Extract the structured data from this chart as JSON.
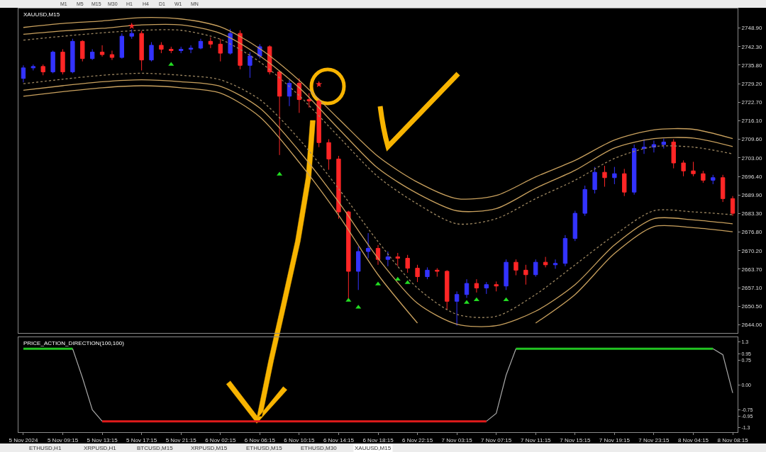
{
  "chart_data": [
    {
      "type": "candlestick",
      "title": "XAUUSD,M15",
      "categories": [
        "5 Nov 2024",
        null,
        null,
        null,
        "5 Nov 09:15",
        null,
        null,
        null,
        "5 Nov 13:15",
        null,
        null,
        null,
        "5 Nov 17:15",
        null,
        null,
        null,
        "5 Nov 21:15",
        null,
        null,
        null,
        "6 Nov 02:15",
        null,
        null,
        null,
        "6 Nov 06:15",
        null,
        null,
        null,
        "6 Nov 10:15",
        null,
        null,
        null,
        "6 Nov 14:15",
        null,
        null,
        null,
        "6 Nov 18:15",
        null,
        null,
        null,
        "6 Nov 22:15",
        null,
        null,
        null,
        "7 Nov 03:15",
        null,
        null,
        null,
        "7 Nov 07:15",
        null,
        null,
        null,
        "7 Nov 11:15",
        null,
        null,
        null,
        "7 Nov 15:15",
        null,
        null,
        null,
        "7 Nov 19:15",
        null,
        null,
        null,
        "7 Nov 23:15",
        null,
        null,
        null,
        "8 Nov 04:15",
        null,
        null,
        null,
        "8 Nov 08:15"
      ],
      "ohlc": [
        [
          2731.1,
          2735.7,
          2729.7,
          2734.8
        ],
        [
          2734.8,
          2736.0,
          2733.9,
          2735.3
        ],
        [
          2735.3,
          2736.0,
          2732.2,
          2733.4
        ],
        [
          2733.4,
          2740.9,
          2732.9,
          2740.4
        ],
        [
          2740.4,
          2741.4,
          2732.5,
          2733.4
        ],
        [
          2733.4,
          2745.1,
          2732.9,
          2744.2
        ],
        [
          2744.2,
          2744.6,
          2737.1,
          2738.1
        ],
        [
          2738.1,
          2741.4,
          2737.6,
          2740.4
        ],
        [
          2740.4,
          2742.8,
          2738.8,
          2739.5
        ],
        [
          2739.5,
          2740.9,
          2737.6,
          2738.5
        ],
        [
          2738.5,
          2747.0,
          2738.1,
          2746.0
        ],
        [
          2746.0,
          2748.4,
          2745.1,
          2747.0
        ],
        [
          2747.0,
          2747.9,
          2733.9,
          2737.6
        ],
        [
          2737.6,
          2743.9,
          2737.1,
          2742.8
        ],
        [
          2742.8,
          2743.9,
          2740.0,
          2741.4
        ],
        [
          2741.4,
          2742.3,
          2740.0,
          2740.9
        ],
        [
          2740.9,
          2742.3,
          2740.0,
          2741.4
        ],
        [
          2741.4,
          2742.8,
          2740.0,
          2741.8
        ],
        [
          2741.8,
          2745.1,
          2741.4,
          2744.2
        ],
        [
          2744.2,
          2745.6,
          2741.8,
          2743.2
        ],
        [
          2743.2,
          2745.1,
          2737.1,
          2740.0
        ],
        [
          2740.0,
          2748.6,
          2739.5,
          2747.0
        ],
        [
          2747.0,
          2748.1,
          2734.3,
          2735.7
        ],
        [
          2735.7,
          2740.4,
          2731.3,
          2739.0
        ],
        [
          2739.0,
          2743.2,
          2738.1,
          2742.3
        ],
        [
          2742.3,
          2742.8,
          2732.5,
          2733.4
        ],
        [
          2733.4,
          2733.9,
          2704.0,
          2724.8
        ],
        [
          2724.8,
          2730.6,
          2721.3,
          2729.4
        ],
        [
          2729.4,
          2731.1,
          2718.9,
          2723.6
        ],
        [
          2723.6,
          2725.9,
          2720.8,
          2723.1
        ],
        [
          2723.1,
          2724.1,
          2706.8,
          2708.4
        ],
        [
          2708.4,
          2709.6,
          2698.8,
          2702.6
        ],
        [
          2702.6,
          2703.7,
          2681.5,
          2683.9
        ],
        [
          2683.9,
          2684.3,
          2653.0,
          2662.9
        ],
        [
          2662.9,
          2671.7,
          2656.3,
          2669.9
        ],
        [
          2669.9,
          2676.4,
          2667.5,
          2671.0
        ],
        [
          2671.0,
          2672.2,
          2665.2,
          2667.1
        ],
        [
          2667.1,
          2669.9,
          2664.7,
          2668.0
        ],
        [
          2668.0,
          2669.4,
          2664.7,
          2667.5
        ],
        [
          2667.5,
          2668.7,
          2662.4,
          2664.0
        ],
        [
          2664.0,
          2665.2,
          2659.1,
          2661.0
        ],
        [
          2661.0,
          2664.3,
          2660.1,
          2663.3
        ],
        [
          2663.3,
          2664.0,
          2661.0,
          2662.9
        ],
        [
          2662.9,
          2663.3,
          2649.3,
          2652.3
        ],
        [
          2652.3,
          2655.8,
          2643.7,
          2654.7
        ],
        [
          2654.7,
          2660.1,
          2653.5,
          2658.6
        ],
        [
          2658.6,
          2660.1,
          2655.4,
          2657.0
        ],
        [
          2657.0,
          2659.1,
          2654.9,
          2658.2
        ],
        [
          2658.2,
          2659.3,
          2655.8,
          2657.7
        ],
        [
          2657.7,
          2667.1,
          2656.3,
          2666.1
        ],
        [
          2666.1,
          2667.1,
          2661.5,
          2663.3
        ],
        [
          2663.3,
          2665.2,
          2658.2,
          2661.7
        ],
        [
          2661.7,
          2667.1,
          2661.0,
          2666.1
        ],
        [
          2666.1,
          2668.0,
          2664.3,
          2665.2
        ],
        [
          2665.2,
          2667.1,
          2663.8,
          2665.7
        ],
        [
          2665.7,
          2675.7,
          2664.7,
          2674.5
        ],
        [
          2674.5,
          2684.3,
          2673.6,
          2683.4
        ],
        [
          2683.4,
          2693.2,
          2682.5,
          2691.8
        ],
        [
          2691.8,
          2699.8,
          2690.4,
          2697.9
        ],
        [
          2697.9,
          2700.2,
          2692.8,
          2696.0
        ],
        [
          2696.0,
          2699.8,
          2693.7,
          2697.4
        ],
        [
          2697.4,
          2699.1,
          2689.5,
          2690.9
        ],
        [
          2690.9,
          2707.7,
          2690.0,
          2706.3
        ],
        [
          2706.3,
          2709.6,
          2704.4,
          2706.8
        ],
        [
          2706.8,
          2709.1,
          2704.9,
          2707.7
        ],
        [
          2707.7,
          2709.8,
          2706.3,
          2708.6
        ],
        [
          2708.6,
          2709.6,
          2699.3,
          2701.2
        ],
        [
          2701.2,
          2702.1,
          2696.5,
          2698.4
        ],
        [
          2698.4,
          2701.6,
          2696.5,
          2697.4
        ],
        [
          2697.4,
          2698.4,
          2694.2,
          2695.1
        ],
        [
          2695.1,
          2697.0,
          2693.7,
          2696.0
        ],
        [
          2696.0,
          2697.0,
          2687.4,
          2688.6
        ],
        [
          2688.6,
          2689.5,
          2682.5,
          2683.4
        ]
      ],
      "colors": [
        "#3333ff",
        "#3333ff",
        "#ff2626",
        "#3333ff",
        "#ff2626",
        "#3333ff",
        "#ff2626",
        "#3333ff",
        "#ff2626",
        "#ff2626",
        "#3333ff",
        "#3333ff",
        "#ff2626",
        "#3333ff",
        "#ff2626",
        "#ff2626",
        "#3333ff",
        "#3333ff",
        "#3333ff",
        "#ff2626",
        "#ff2626",
        "#3333ff",
        "#ff2626",
        "#3333ff",
        "#3333ff",
        "#ff2626",
        "#ff2626",
        "#3333ff",
        "#ff2626",
        "#ff2626",
        "#ff2626",
        "#ff2626",
        "#ff2626",
        "#ff2626",
        "#3333ff",
        "#3333ff",
        "#ff2626",
        "#3333ff",
        "#ff2626",
        "#ff2626",
        "#ff2626",
        "#3333ff",
        "#ff2626",
        "#ff2626",
        "#3333ff",
        "#3333ff",
        "#ff2626",
        "#3333ff",
        "#ff2626",
        "#3333ff",
        "#ff2626",
        "#ff2626",
        "#3333ff",
        "#ff2626",
        "#3333ff",
        "#3333ff",
        "#3333ff",
        "#3333ff",
        "#3333ff",
        "#ff2626",
        "#3333ff",
        "#ff2626",
        "#3333ff",
        "#3333ff",
        "#3333ff",
        "#3333ff",
        "#ff2626",
        "#ff2626",
        "#ff2626",
        "#ff2626",
        "#3333ff",
        "#ff2626",
        "#ff2626"
      ],
      "series": [
        {
          "type": "line",
          "color": "#c9a15e",
          "line_style": "solid",
          "x": [
            "5 Nov 2024",
            "5 Nov 09:15",
            "5 Nov 13:15",
            "5 Nov 17:15",
            "5 Nov 21:15",
            "6 Nov 02:15",
            "6 Nov 06:15",
            "6 Nov 10:15",
            "6 Nov 14:15",
            "6 Nov 18:15",
            "6 Nov 22:15",
            "7 Nov 03:15",
            "7 Nov 07:15",
            "7 Nov 11:15",
            "7 Nov 15:15",
            "7 Nov 19:15",
            "7 Nov 23:15",
            "8 Nov 04:15",
            "8 Nov 08:15"
          ],
          "values": [
            2749.1,
            2750.5,
            2751.4,
            2752.6,
            2752.1,
            2749.3,
            2741.6,
            2730.4,
            2716.8,
            2703.5,
            2694.4,
            2688.6,
            2689.7,
            2696.3,
            2702.1,
            2709.3,
            2712.9,
            2713.1,
            2709.8
          ]
        },
        {
          "type": "line",
          "color": "#c9a15e",
          "line_style": "solid",
          "x": [
            "5 Nov 2024",
            "5 Nov 09:15",
            "5 Nov 13:15",
            "5 Nov 17:15",
            "5 Nov 21:15",
            "6 Nov 02:15",
            "6 Nov 06:15",
            "6 Nov 10:15",
            "6 Nov 14:15",
            "6 Nov 18:15",
            "6 Nov 22:15",
            "7 Nov 03:15",
            "7 Nov 07:15",
            "7 Nov 11:15",
            "7 Nov 15:15",
            "7 Nov 19:15",
            "7 Nov 23:15",
            "8 Nov 04:15",
            "8 Nov 08:15"
          ],
          "values": [
            2746.7,
            2747.9,
            2748.8,
            2750.0,
            2750.0,
            2747.0,
            2739.0,
            2727.8,
            2713.3,
            2699.3,
            2690.4,
            2684.3,
            2685.1,
            2692.3,
            2698.6,
            2706.5,
            2709.8,
            2710.0,
            2707.0
          ]
        },
        {
          "type": "line",
          "color": "#9c8660",
          "line_style": "dotted",
          "x": [
            "5 Nov 2024",
            "5 Nov 09:15",
            "5 Nov 13:15",
            "5 Nov 17:15",
            "5 Nov 21:15",
            "6 Nov 02:15",
            "6 Nov 06:15",
            "6 Nov 10:15",
            "6 Nov 14:15",
            "6 Nov 18:15",
            "6 Nov 22:15",
            "7 Nov 03:15",
            "7 Nov 07:15",
            "7 Nov 11:15",
            "7 Nov 15:15",
            "7 Nov 19:15",
            "7 Nov 23:15",
            "8 Nov 04:15",
            "8 Nov 08:15"
          ],
          "values": [
            2744.6,
            2746.0,
            2747.2,
            2748.1,
            2748.1,
            2744.9,
            2736.9,
            2725.0,
            2710.5,
            2696.3,
            2686.7,
            2679.7,
            2681.5,
            2688.6,
            2695.1,
            2702.8,
            2707.0,
            2706.8,
            2704.4
          ]
        },
        {
          "type": "line",
          "color": "#9c8660",
          "line_style": "dotted",
          "x": [
            "5 Nov 2024",
            "5 Nov 09:15",
            "5 Nov 13:15",
            "5 Nov 17:15",
            "5 Nov 21:15",
            "6 Nov 02:15",
            "6 Nov 06:15",
            "6 Nov 10:15",
            "6 Nov 14:15",
            "6 Nov 18:15",
            "6 Nov 22:15",
            "7 Nov 03:15",
            "7 Nov 07:15",
            "7 Nov 11:15",
            "7 Nov 15:15",
            "7 Nov 19:15",
            "7 Nov 23:15",
            "8 Nov 04:15",
            "8 Nov 08:15"
          ],
          "values": [
            2729.2,
            2730.8,
            2732.2,
            2732.9,
            2732.2,
            2730.6,
            2723.6,
            2709.6,
            2692.1,
            2673.4,
            2657.0,
            2647.7,
            2647.0,
            2654.7,
            2665.2,
            2675.7,
            2684.3,
            2683.9,
            2682.9
          ]
        },
        {
          "type": "line",
          "color": "#c9a15e",
          "line_style": "solid",
          "x": [
            "5 Nov 2024",
            "5 Nov 09:15",
            "5 Nov 13:15",
            "5 Nov 17:15",
            "5 Nov 21:15",
            "6 Nov 02:15",
            "6 Nov 06:15",
            "6 Nov 10:15",
            "6 Nov 14:15",
            "6 Nov 18:15",
            "6 Nov 22:15",
            "7 Nov 03:15",
            "7 Nov 07:15",
            "7 Nov 11:15",
            "7 Nov 15:15",
            "7 Nov 19:15",
            "7 Nov 23:15",
            "8 Nov 04:15",
            "8 Nov 08:15"
          ],
          "values": [
            2726.9,
            2728.5,
            2729.9,
            2730.6,
            2729.9,
            2728.3,
            2720.6,
            2705.4,
            2687.4,
            2667.5,
            2651.6,
            2644.2,
            2643.7,
            2648.8,
            2658.2,
            2672.2,
            2681.5,
            2681.1,
            2679.7
          ]
        },
        {
          "type": "line",
          "color": "#c9a15e",
          "line_style": "solid",
          "x": [
            "5 Nov 2024",
            "5 Nov 09:15",
            "5 Nov 13:15",
            "5 Nov 17:15",
            "5 Nov 21:15",
            "6 Nov 02:15",
            "6 Nov 06:15",
            "6 Nov 10:15",
            "6 Nov 14:15",
            "6 Nov 18:15",
            "6 Nov 22:15",
            "7 Nov 03:15",
            "7 Nov 07:15",
            "7 Nov 11:15",
            "7 Nov 15:15",
            "7 Nov 19:15",
            "7 Nov 23:15",
            "8 Nov 04:15",
            "8 Nov 08:15"
          ],
          "values": [
            2724.8,
            2726.4,
            2727.8,
            2728.5,
            2727.8,
            2725.9,
            2717.5,
            2701.4,
            2682.7,
            2661.7,
            2644.6,
            null,
            null,
            2644.6,
            2654.7,
            2669.2,
            2678.7,
            2678.3,
            2676.9
          ]
        },
        {
          "type": "scatter",
          "color": "#22dd22",
          "marker": "triangle",
          "values": [
            null,
            null,
            null,
            null,
            null,
            null,
            null,
            null,
            null,
            null,
            null,
            null,
            null,
            null,
            null,
            2736.0,
            null,
            null,
            null,
            null,
            null,
            null,
            null,
            null,
            null,
            null,
            2697.2,
            null,
            null,
            null,
            null,
            null,
            null,
            2652.6,
            2650.2,
            null,
            2658.4,
            null,
            2660.1,
            2658.9,
            null,
            null,
            null,
            null,
            null,
            2651.9,
            2652.8,
            null,
            null,
            2652.8,
            null,
            null,
            null,
            null,
            null,
            null,
            null,
            null,
            null,
            null,
            null,
            null,
            null,
            null,
            null,
            null,
            null,
            null,
            null,
            null,
            null,
            null,
            null
          ]
        },
        {
          "type": "scatter",
          "color": "#ff2626",
          "marker": "star",
          "values": [
            null,
            null,
            null,
            null,
            null,
            null,
            null,
            null,
            null,
            null,
            null,
            2749.6,
            null,
            null,
            null,
            null,
            null,
            null,
            null,
            null,
            null,
            null,
            null,
            null,
            null,
            null,
            null,
            null,
            null,
            null,
            2729.0,
            null,
            null,
            null,
            null,
            null,
            null,
            null,
            null,
            null,
            null,
            null,
            null,
            null,
            null,
            null,
            null,
            null,
            null,
            null,
            null,
            null,
            null,
            null,
            null,
            null,
            null,
            null,
            null,
            null,
            null,
            null,
            null,
            null,
            null,
            null,
            null,
            null,
            null,
            null,
            null,
            null,
            null
          ]
        }
      ],
      "ylim": [
        2641.1,
        2755.8
      ],
      "yticks": [
        {
          "value": 2748.9,
          "label": "2748.90"
        },
        {
          "value": 2742.3,
          "label": "2742.30"
        },
        {
          "value": 2735.8,
          "label": "2735.80"
        },
        {
          "value": 2729.2,
          "label": "2729.20"
        },
        {
          "value": 2722.7,
          "label": "2722.70"
        },
        {
          "value": 2716.1,
          "label": "2716.10"
        },
        {
          "value": 2709.6,
          "label": "2709.60"
        },
        {
          "value": 2703.0,
          "label": "2703.00"
        },
        {
          "value": 2696.4,
          "label": "2696.40"
        },
        {
          "value": 2689.9,
          "label": "2689.90"
        },
        {
          "value": 2683.3,
          "label": "2683.30"
        },
        {
          "value": 2676.8,
          "label": "2676.80"
        },
        {
          "value": 2670.2,
          "label": "2670.20"
        },
        {
          "value": 2663.7,
          "label": "2663.70"
        },
        {
          "value": 2657.1,
          "label": "2657.10"
        },
        {
          "value": 2650.5,
          "label": "2650.50"
        },
        {
          "value": 2644.0,
          "label": "2644.00"
        }
      ],
      "tick_labels": "y",
      "annotations": [
        "M1",
        "M5",
        "M15",
        "M30",
        "H1",
        "H4",
        "D1",
        "W1",
        "MN"
      ]
    },
    {
      "type": "line",
      "title": "PRICE_ACTION_DIRECTION(100,100)",
      "categories": [
        "5 Nov 2024",
        null,
        null,
        null,
        "5 Nov 09:15",
        null,
        null,
        null,
        "5 Nov 13:15",
        null,
        null,
        null,
        "5 Nov 17:15",
        null,
        null,
        null,
        "5 Nov 21:15",
        null,
        null,
        null,
        "6 Nov 02:15",
        null,
        null,
        null,
        "6 Nov 06:15",
        null,
        null,
        null,
        "6 Nov 10:15",
        null,
        null,
        null,
        "6 Nov 14:15",
        null,
        null,
        null,
        "6 Nov 18:15",
        null,
        null,
        null,
        "6 Nov 22:15",
        null,
        null,
        null,
        "7 Nov 03:15",
        null,
        null,
        null,
        "7 Nov 07:15",
        null,
        null,
        null,
        "7 Nov 11:15",
        null,
        null,
        null,
        "7 Nov 15:15",
        null,
        null,
        null,
        "7 Nov 19:15",
        null,
        null,
        null,
        "7 Nov 23:15",
        null,
        null,
        null,
        "8 Nov 04:15",
        null,
        null,
        null,
        "8 Nov 08:15"
      ],
      "series": [
        {
          "color": "#22c422",
          "values": [
            1.1,
            1.1,
            1.1,
            1.1,
            1.1,
            1.1,
            null,
            null,
            null,
            null,
            null,
            null,
            null,
            null,
            null,
            null,
            null,
            null,
            null,
            null,
            null,
            null,
            null,
            null,
            null,
            null,
            null,
            null,
            null,
            null,
            null,
            null,
            null,
            null,
            null,
            null,
            null,
            null,
            null,
            null,
            null,
            null,
            null,
            null,
            null,
            null,
            null,
            null,
            null,
            null,
            1.1,
            1.1,
            1.1,
            1.1,
            1.1,
            1.1,
            1.1,
            1.1,
            1.1,
            1.1,
            1.1,
            1.1,
            1.1,
            1.1,
            1.1,
            1.1,
            1.1,
            1.1,
            1.1,
            1.1,
            1.1,
            null,
            null
          ]
        },
        {
          "color": "#a8a8a8",
          "values": [
            null,
            null,
            null,
            null,
            null,
            1.1,
            0.22,
            -0.75,
            -1.1,
            null,
            null,
            null,
            null,
            null,
            null,
            null,
            null,
            null,
            null,
            null,
            null,
            null,
            null,
            null,
            null,
            null,
            null,
            null,
            null,
            null,
            null,
            null,
            null,
            null,
            null,
            null,
            null,
            null,
            null,
            null,
            null,
            null,
            null,
            null,
            null,
            null,
            null,
            -1.1,
            -0.86,
            0.3,
            1.1,
            null,
            null,
            null,
            null,
            null,
            null,
            null,
            null,
            null,
            null,
            null,
            null,
            null,
            null,
            null,
            null,
            null,
            null,
            null,
            1.1,
            0.92,
            -0.24
          ]
        },
        {
          "color": "#e01b1b",
          "values": [
            null,
            null,
            null,
            null,
            null,
            null,
            null,
            null,
            -1.1,
            -1.1,
            -1.1,
            -1.1,
            -1.1,
            -1.1,
            -1.1,
            -1.1,
            -1.1,
            -1.1,
            -1.1,
            -1.1,
            -1.1,
            -1.1,
            -1.1,
            -1.1,
            -1.1,
            -1.1,
            -1.1,
            -1.1,
            -1.1,
            -1.1,
            -1.1,
            -1.1,
            -1.1,
            -1.1,
            -1.1,
            -1.1,
            -1.1,
            -1.1,
            -1.1,
            -1.1,
            -1.1,
            -1.1,
            -1.1,
            -1.1,
            -1.1,
            -1.1,
            -1.1,
            -1.1,
            null,
            null,
            null,
            null,
            null,
            null,
            null,
            null,
            null,
            null,
            null,
            null,
            null,
            null,
            null,
            null,
            null,
            null,
            null,
            null,
            null,
            null,
            null,
            null,
            null
          ]
        }
      ],
      "ylim": [
        -1.43,
        1.45
      ],
      "yticks": [
        1.3,
        0.95,
        0.75,
        {
          "value": 0,
          "label": "0.00"
        },
        -0.75,
        -0.95,
        -1.3
      ],
      "annotations": [
        "ETHUSD,H1",
        "XRPUSD,H1",
        "BTCUSD,M15",
        "XRPUSD,M15",
        "ETHUSD,M15",
        "ETHUSD,M30",
        "XAUUSD,M15"
      ]
    }
  ]
}
